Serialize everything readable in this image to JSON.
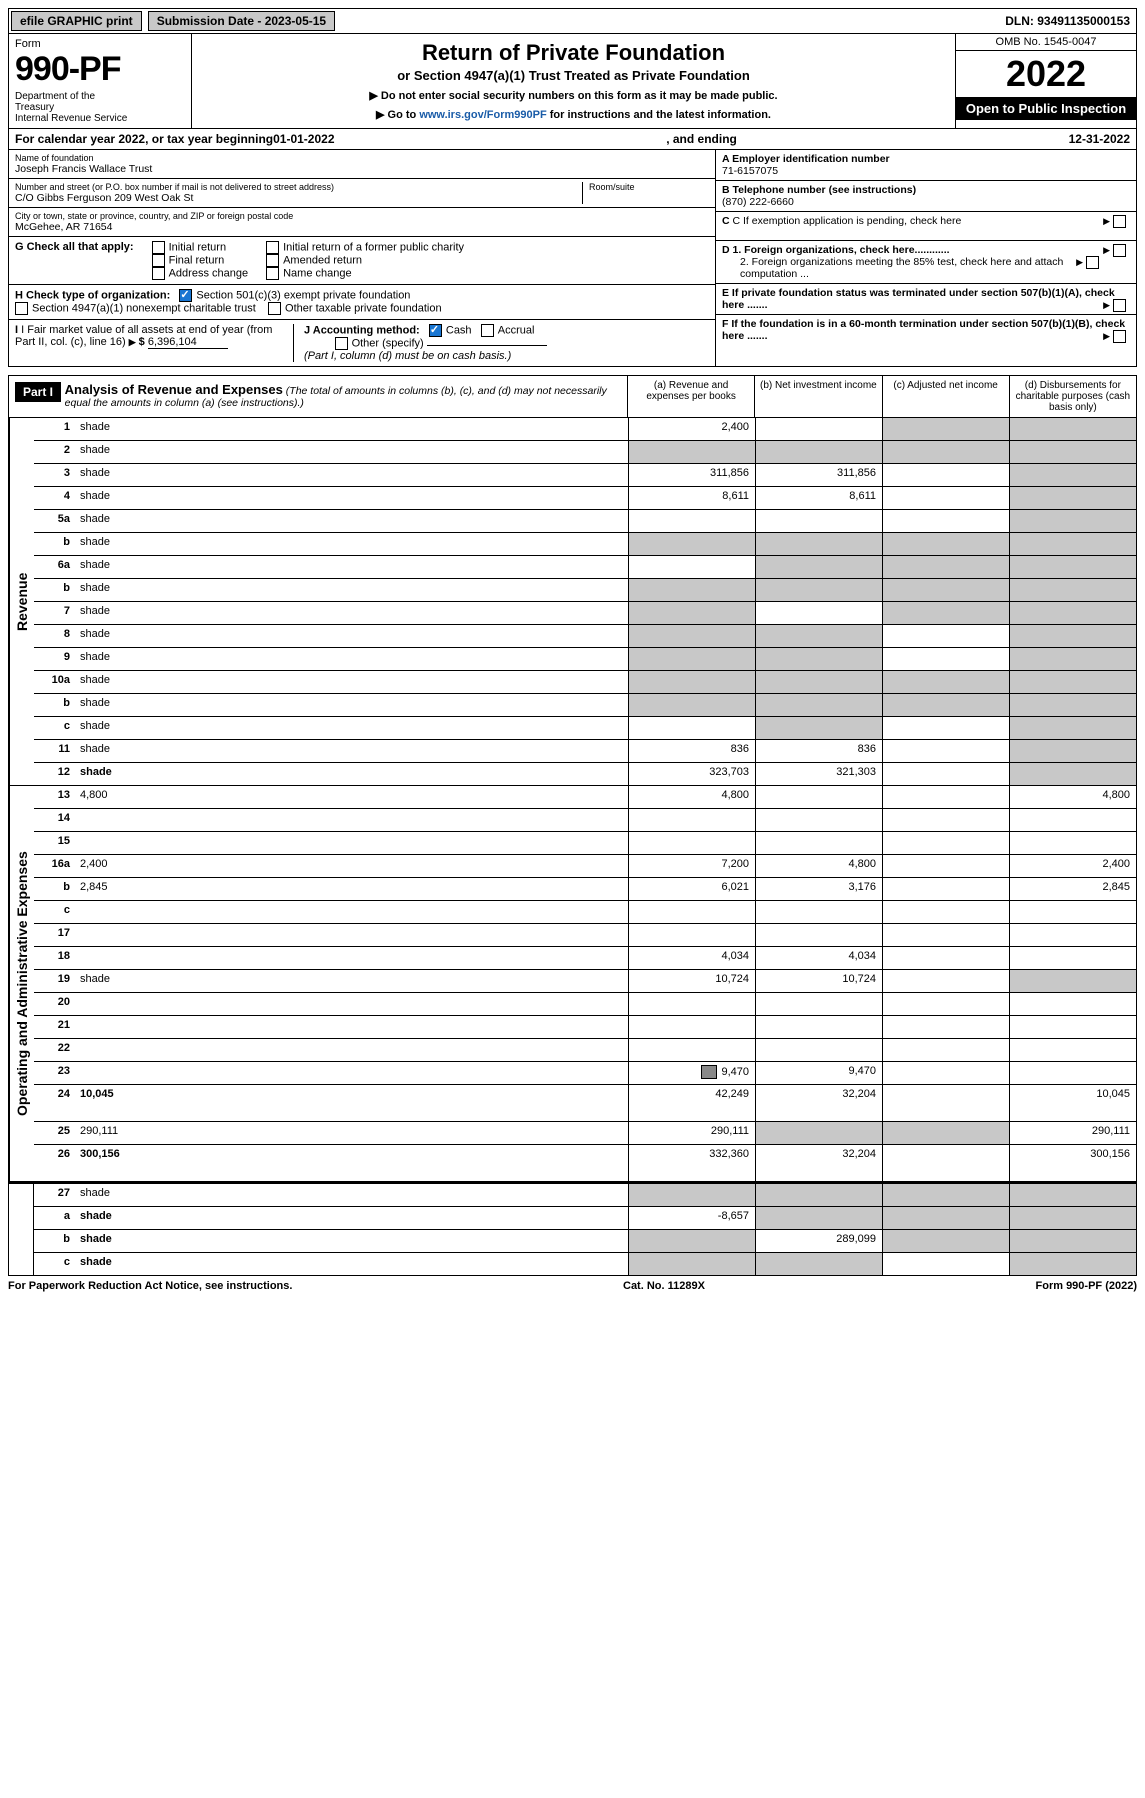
{
  "topbar": {
    "efile": "efile GRAPHIC print",
    "submission_label": "Submission Date - 2023-05-15",
    "dln": "DLN: 93491135000153"
  },
  "header": {
    "form_label": "Form",
    "form_number": "990-PF",
    "dept": "Department of the Treasury\nInternal Revenue Service",
    "title": "Return of Private Foundation",
    "subtitle": "or Section 4947(a)(1) Trust Treated as Private Foundation",
    "instr1": "▶ Do not enter social security numbers on this form as it may be made public.",
    "instr2_pre": "▶ Go to ",
    "instr2_link": "www.irs.gov/Form990PF",
    "instr2_post": " for instructions and the latest information.",
    "omb": "OMB No. 1545-0047",
    "year": "2022",
    "open": "Open to Public Inspection"
  },
  "cal": {
    "text_pre": "For calendar year 2022, or tax year beginning ",
    "begin": "01-01-2022",
    "mid": ", and ending ",
    "end": "12-31-2022"
  },
  "meta": {
    "name_label": "Name of foundation",
    "name": "Joseph Francis Wallace Trust",
    "addr_label": "Number and street (or P.O. box number if mail is not delivered to street address)",
    "addr": "C/O Gibbs Ferguson 209 West Oak St",
    "room_label": "Room/suite",
    "city_label": "City or town, state or province, country, and ZIP or foreign postal code",
    "city": "McGehee, AR  71654",
    "ein_label": "A Employer identification number",
    "ein": "71-6157075",
    "phone_label": "B Telephone number (see instructions)",
    "phone": "(870) 222-6660",
    "c_label": "C If exemption application is pending, check here",
    "d1": "D 1. Foreign organizations, check here............",
    "d2": "2. Foreign organizations meeting the 85% test, check here and attach computation ...",
    "e_label": "E  If private foundation status was terminated under section 507(b)(1)(A), check here .......",
    "f_label": "F  If the foundation is in a 60-month termination under section 507(b)(1)(B), check here .......",
    "g_label": "G Check all that apply:",
    "g_opts": [
      "Initial return",
      "Final return",
      "Address change",
      "Initial return of a former public charity",
      "Amended return",
      "Name change"
    ],
    "h_label": "H Check type of organization:",
    "h1": "Section 501(c)(3) exempt private foundation",
    "h2": "Section 4947(a)(1) nonexempt charitable trust",
    "h3": "Other taxable private foundation",
    "i_label": "I Fair market value of all assets at end of year (from Part II, col. (c), line 16)",
    "i_value": "6,396,104",
    "j_label": "J Accounting method:",
    "j_cash": "Cash",
    "j_accrual": "Accrual",
    "j_other": "Other (specify)",
    "j_note": "(Part I, column (d) must be on cash basis.)"
  },
  "analysis": {
    "part": "Part I",
    "title": "Analysis of Revenue and Expenses",
    "title_note": "(The total of amounts in columns (b), (c), and (d) may not necessarily equal the amounts in column (a) (see instructions).)",
    "col_a": "(a)  Revenue and expenses per books",
    "col_b": "(b)  Net investment income",
    "col_c": "(c)  Adjusted net income",
    "col_d": "(d)  Disbursements for charitable purposes (cash basis only)"
  },
  "sections": {
    "revenue": "Revenue",
    "expenses": "Operating and Administrative Expenses"
  },
  "rows_revenue": [
    {
      "n": "1",
      "d": "shade",
      "a": "2,400",
      "b": "",
      "c": "shade"
    },
    {
      "n": "2",
      "d": "shade",
      "a": "shade",
      "b": "shade",
      "c": "shade"
    },
    {
      "n": "3",
      "d": "shade",
      "a": "311,856",
      "b": "311,856",
      "c": ""
    },
    {
      "n": "4",
      "d": "shade",
      "a": "8,611",
      "b": "8,611",
      "c": ""
    },
    {
      "n": "5a",
      "d": "shade",
      "a": "",
      "b": "",
      "c": ""
    },
    {
      "n": "b",
      "d": "shade",
      "a": "shade",
      "b": "shade",
      "c": "shade"
    },
    {
      "n": "6a",
      "d": "shade",
      "a": "",
      "b": "shade",
      "c": "shade"
    },
    {
      "n": "b",
      "d": "shade",
      "a": "shade",
      "b": "shade",
      "c": "shade"
    },
    {
      "n": "7",
      "d": "shade",
      "a": "shade",
      "b": "",
      "c": "shade"
    },
    {
      "n": "8",
      "d": "shade",
      "a": "shade",
      "b": "shade",
      "c": ""
    },
    {
      "n": "9",
      "d": "shade",
      "a": "shade",
      "b": "shade",
      "c": ""
    },
    {
      "n": "10a",
      "d": "shade",
      "a": "shade",
      "b": "shade",
      "c": "shade"
    },
    {
      "n": "b",
      "d": "shade",
      "a": "shade",
      "b": "shade",
      "c": "shade"
    },
    {
      "n": "c",
      "d": "shade",
      "a": "",
      "b": "shade",
      "c": ""
    },
    {
      "n": "11",
      "d": "shade",
      "a": "836",
      "b": "836",
      "c": ""
    },
    {
      "n": "12",
      "d": "shade",
      "a": "323,703",
      "b": "321,303",
      "c": "",
      "bold": true
    }
  ],
  "rows_expenses": [
    {
      "n": "13",
      "d": "4,800",
      "a": "4,800",
      "b": "",
      "c": ""
    },
    {
      "n": "14",
      "d": "",
      "a": "",
      "b": "",
      "c": ""
    },
    {
      "n": "15",
      "d": "",
      "a": "",
      "b": "",
      "c": ""
    },
    {
      "n": "16a",
      "d": "2,400",
      "a": "7,200",
      "b": "4,800",
      "c": ""
    },
    {
      "n": "b",
      "d": "2,845",
      "a": "6,021",
      "b": "3,176",
      "c": ""
    },
    {
      "n": "c",
      "d": "",
      "a": "",
      "b": "",
      "c": ""
    },
    {
      "n": "17",
      "d": "",
      "a": "",
      "b": "",
      "c": ""
    },
    {
      "n": "18",
      "d": "",
      "a": "4,034",
      "b": "4,034",
      "c": ""
    },
    {
      "n": "19",
      "d": "shade",
      "a": "10,724",
      "b": "10,724",
      "c": ""
    },
    {
      "n": "20",
      "d": "",
      "a": "",
      "b": "",
      "c": ""
    },
    {
      "n": "21",
      "d": "",
      "a": "",
      "b": "",
      "c": ""
    },
    {
      "n": "22",
      "d": "",
      "a": "",
      "b": "",
      "c": ""
    },
    {
      "n": "23",
      "d": "",
      "a": "9,470",
      "b": "9,470",
      "c": "",
      "icon": true
    },
    {
      "n": "24",
      "d": "10,045",
      "a": "42,249",
      "b": "32,204",
      "c": "",
      "bold": true,
      "tall": true
    },
    {
      "n": "25",
      "d": "290,111",
      "a": "290,111",
      "b": "shade",
      "c": "shade"
    },
    {
      "n": "26",
      "d": "300,156",
      "a": "332,360",
      "b": "32,204",
      "c": "",
      "bold": true,
      "tall": true
    }
  ],
  "rows_bottom": [
    {
      "n": "27",
      "d": "shade",
      "a": "shade",
      "b": "shade",
      "c": "shade"
    },
    {
      "n": "a",
      "d": "shade",
      "a": "-8,657",
      "b": "shade",
      "c": "shade",
      "bold": true
    },
    {
      "n": "b",
      "d": "shade",
      "a": "shade",
      "b": "289,099",
      "c": "shade",
      "bold": true
    },
    {
      "n": "c",
      "d": "shade",
      "a": "shade",
      "b": "shade",
      "c": "",
      "bold": true
    }
  ],
  "footer": {
    "left": "For Paperwork Reduction Act Notice, see instructions.",
    "mid": "Cat. No. 11289X",
    "right": "Form 990-PF (2022)"
  },
  "colors": {
    "shade": "#c8c8c8",
    "link": "#1a5ca8",
    "check": "#1976d2"
  }
}
